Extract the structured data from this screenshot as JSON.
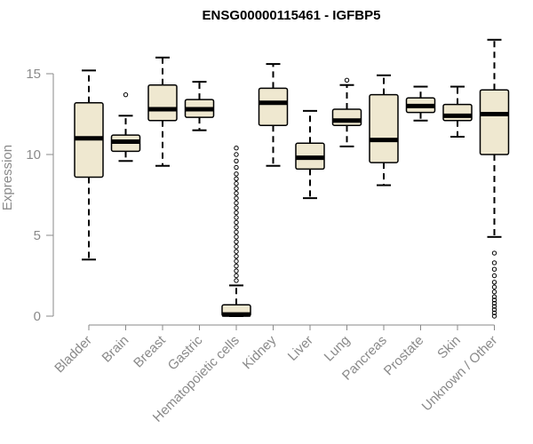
{
  "chart_data": {
    "type": "boxplot",
    "title": "ENSG00000115461 - IGFBP5",
    "xlabel": "",
    "ylabel": "Expression",
    "ylim": [
      0,
      17.5
    ],
    "yticks": [
      0,
      5,
      10,
      15
    ],
    "box_fill": "#efe8d0",
    "categories": [
      "Bladder",
      "Brain",
      "Breast",
      "Gastric",
      "Hematopoietic cells",
      "Kidney",
      "Liver",
      "Lung",
      "Pancreas",
      "Prostate",
      "Skin",
      "Unknown / Other"
    ],
    "boxes": [
      {
        "whisker_low": 3.5,
        "q1": 8.6,
        "median": 11.0,
        "q3": 13.2,
        "whisker_high": 15.2,
        "outliers": []
      },
      {
        "whisker_low": 9.6,
        "q1": 10.2,
        "median": 10.8,
        "q3": 11.2,
        "whisker_high": 12.4,
        "outliers": [
          13.7
        ]
      },
      {
        "whisker_low": 9.3,
        "q1": 12.1,
        "median": 12.8,
        "q3": 14.3,
        "whisker_high": 16.0,
        "outliers": []
      },
      {
        "whisker_low": 11.5,
        "q1": 12.3,
        "median": 12.8,
        "q3": 13.4,
        "whisker_high": 14.5,
        "outliers": []
      },
      {
        "whisker_low": 0.0,
        "q1": 0.0,
        "median": 0.1,
        "q3": 0.7,
        "whisker_high": 1.9,
        "outliers": [
          2.2,
          2.5,
          2.8,
          3.1,
          3.4,
          3.7,
          4.0,
          4.3,
          4.6,
          4.9,
          5.2,
          5.5,
          5.8,
          6.1,
          6.4,
          6.7,
          7.0,
          7.3,
          7.6,
          7.9,
          8.2,
          8.5,
          8.8,
          9.2,
          9.6,
          10.0,
          10.4
        ]
      },
      {
        "whisker_low": 9.3,
        "q1": 11.8,
        "median": 13.2,
        "q3": 14.1,
        "whisker_high": 15.6,
        "outliers": []
      },
      {
        "whisker_low": 7.3,
        "q1": 9.1,
        "median": 9.8,
        "q3": 10.7,
        "whisker_high": 12.7,
        "outliers": []
      },
      {
        "whisker_low": 10.5,
        "q1": 11.8,
        "median": 12.1,
        "q3": 12.8,
        "whisker_high": 14.3,
        "outliers": [
          14.6
        ]
      },
      {
        "whisker_low": 8.1,
        "q1": 9.5,
        "median": 10.9,
        "q3": 13.7,
        "whisker_high": 14.9,
        "outliers": []
      },
      {
        "whisker_low": 12.1,
        "q1": 12.6,
        "median": 13.0,
        "q3": 13.5,
        "whisker_high": 14.2,
        "outliers": []
      },
      {
        "whisker_low": 11.1,
        "q1": 12.1,
        "median": 12.4,
        "q3": 13.1,
        "whisker_high": 14.2,
        "outliers": []
      },
      {
        "whisker_low": 4.9,
        "q1": 10.0,
        "median": 12.5,
        "q3": 14.0,
        "whisker_high": 17.1,
        "outliers": [
          0.0,
          0.2,
          0.4,
          0.6,
          0.8,
          1.0,
          1.2,
          1.5,
          1.8,
          2.1,
          2.5,
          2.9,
          3.3,
          3.9
        ]
      }
    ]
  }
}
